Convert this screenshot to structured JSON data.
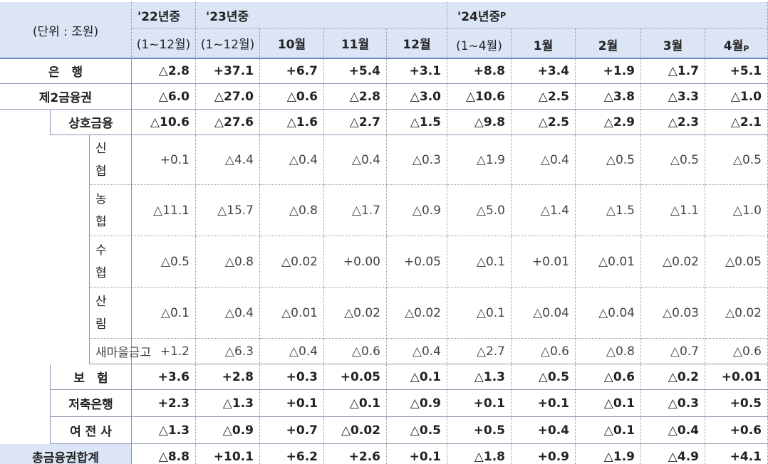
{
  "header": {
    "unit": "(단위 : 조원)",
    "y22": {
      "label": "'22년중",
      "period": "(1~12월)"
    },
    "y23": {
      "label": "'23년중",
      "period": "(1~12월)",
      "months": [
        "10월",
        "11월",
        "12월"
      ]
    },
    "y24": {
      "label": "'24년중",
      "sup": "P",
      "period": "(1~4월)",
      "months": [
        {
          "text": "1월"
        },
        {
          "text": "2월"
        },
        {
          "text": "3월"
        },
        {
          "text": "4월",
          "sup": "P"
        }
      ]
    }
  },
  "table": {
    "rows": [
      {
        "label": "은　행",
        "values": [
          "△2.8",
          "+37.1",
          "+6.7",
          "+5.4",
          "+3.1",
          "+8.8",
          "+3.4",
          "+1.9",
          "△1.7",
          "+5.1"
        ]
      },
      {
        "label": "제2금융권",
        "values": [
          "△6.0",
          "△27.0",
          "△0.6",
          "△2.8",
          "△3.0",
          "△10.6",
          "△2.5",
          "△3.8",
          "△3.3",
          "△1.0"
        ],
        "children": [
          {
            "label": "상호금융",
            "values": [
              "△10.6",
              "△27.6",
              "△1.6",
              "△2.7",
              "△1.5",
              "△9.8",
              "△2.5",
              "△2.9",
              "△2.3",
              "△2.1"
            ],
            "children": [
              {
                "label": "신협",
                "values": [
                  "+0.1",
                  "△4.4",
                  "△0.4",
                  "△0.4",
                  "△0.3",
                  "△1.9",
                  "△0.4",
                  "△0.5",
                  "△0.5",
                  "△0.5"
                ]
              },
              {
                "label": "농협",
                "values": [
                  "△11.1",
                  "△15.7",
                  "△0.8",
                  "△1.7",
                  "△0.9",
                  "△5.0",
                  "△1.4",
                  "△1.5",
                  "△1.1",
                  "△1.0"
                ]
              },
              {
                "label": "수협",
                "values": [
                  "△0.5",
                  "△0.8",
                  "△0.02",
                  "+0.00",
                  "+0.05",
                  "△0.1",
                  "+0.01",
                  "△0.01",
                  "△0.02",
                  "△0.05"
                ]
              },
              {
                "label": "산림",
                "values": [
                  "△0.1",
                  "△0.4",
                  "△0.01",
                  "△0.02",
                  "△0.02",
                  "△0.1",
                  "△0.04",
                  "△0.04",
                  "△0.03",
                  "△0.02"
                ]
              },
              {
                "label": "새마을금고",
                "values": [
                  "+1.2",
                  "△6.3",
                  "△0.4",
                  "△0.6",
                  "△0.4",
                  "△2.7",
                  "△0.6",
                  "△0.8",
                  "△0.7",
                  "△0.6"
                ]
              }
            ]
          },
          {
            "label": "보　험",
            "values": [
              "+3.6",
              "+2.8",
              "+0.3",
              "+0.05",
              "△0.1",
              "△1.3",
              "△0.5",
              "△0.6",
              "△0.2",
              "+0.01"
            ]
          },
          {
            "label": "저축은행",
            "values": [
              "+2.3",
              "△1.3",
              "+0.1",
              "△0.1",
              "△0.9",
              "+0.1",
              "+0.1",
              "△0.1",
              "△0.3",
              "+0.5"
            ]
          },
          {
            "label": "여 전 사",
            "values": [
              "△1.3",
              "△0.9",
              "+0.7",
              "△0.02",
              "△0.5",
              "+0.5",
              "+0.4",
              "△0.1",
              "△0.4",
              "+0.6"
            ]
          }
        ]
      },
      {
        "label": "총금융권합계",
        "values": [
          "△8.8",
          "+10.1",
          "+6.2",
          "+2.6",
          "+0.1",
          "△1.8",
          "+0.9",
          "△1.9",
          "△4.9",
          "+4.1"
        ]
      }
    ]
  }
}
